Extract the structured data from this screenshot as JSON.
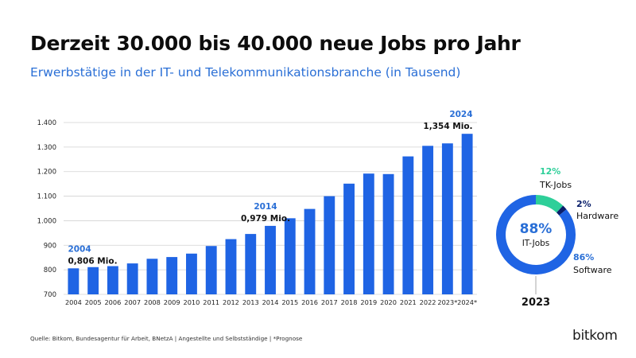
{
  "title": "Derzeit 30.000 bis 40.000 neue Jobs pro Jahr",
  "subtitle": "Erwerbstätige in der IT- und Telekommunikationsbranche (in Tausend)",
  "source": "Quelle: Bitkom, Bundesagentur für Arbeit, BNetzA | Angestellte und Selbstständige | *Prognose",
  "logo": "bitkom",
  "colors": {
    "bar": "#1f64e4",
    "accent_blue": "#2a6fd6",
    "tk_green": "#2ecf99",
    "hardware_navy": "#0a1f6b"
  },
  "chart_data": [
    {
      "type": "bar",
      "categories": [
        "2004",
        "2005",
        "2006",
        "2007",
        "2008",
        "2009",
        "2010",
        "2011",
        "2012",
        "2013",
        "2014",
        "2015",
        "2016",
        "2017",
        "2018",
        "2019",
        "2020",
        "2021",
        "2022",
        "2023*",
        "2024*"
      ],
      "values": [
        806,
        811,
        815,
        826,
        845,
        852,
        866,
        897,
        925,
        946,
        979,
        1010,
        1048,
        1100,
        1151,
        1192,
        1190,
        1262,
        1305,
        1315,
        1354
      ],
      "ylim": [
        700,
        1400
      ],
      "yticks": [
        700,
        800,
        900,
        1000,
        1100,
        1200,
        1300,
        1400
      ],
      "ytick_labels": [
        "700",
        "800",
        "900",
        "1.000",
        "1.100",
        "1.200",
        "1.300",
        "1.400"
      ],
      "grid": true,
      "annotations": [
        {
          "year_label": "2004",
          "value_label": "0,806 Mio.",
          "category_index": 0
        },
        {
          "year_label": "2014",
          "value_label": "0,979 Mio.",
          "category_index": 10
        },
        {
          "year_label": "2024",
          "value_label": "1,354 Mio.",
          "category_index": 20
        }
      ]
    },
    {
      "type": "pie",
      "style": "donut",
      "center_value": "88%",
      "center_label": "IT-Jobs",
      "caption": "2023",
      "slices": [
        {
          "label": "Software",
          "percent_text": "86%",
          "value": 86,
          "color": "#1f64e4"
        },
        {
          "label": "TK-Jobs",
          "percent_text": "12%",
          "value": 12,
          "color": "#2ecf99"
        },
        {
          "label": "Hardware",
          "percent_text": "2%",
          "value": 2,
          "color": "#0a1f6b"
        }
      ]
    }
  ]
}
